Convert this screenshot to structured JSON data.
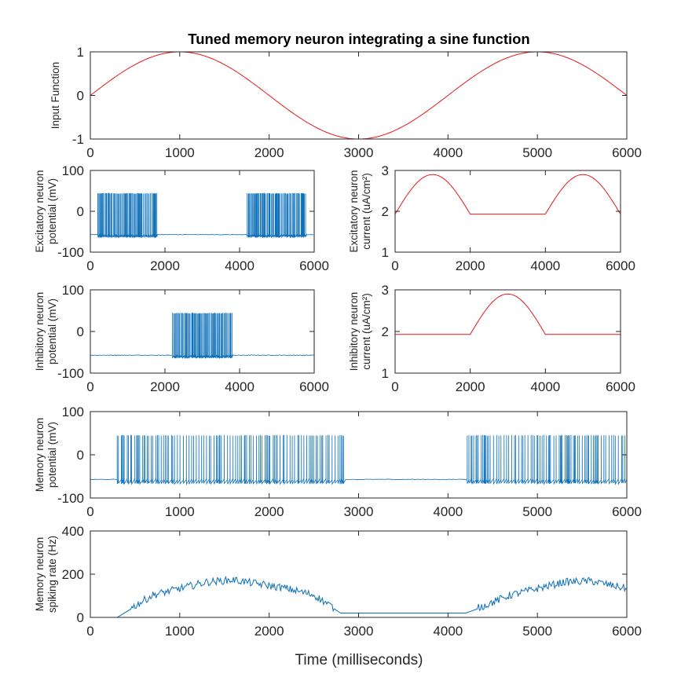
{
  "figure": {
    "title": "Tuned memory neuron integrating a sine function",
    "xlabel": "Time (milliseconds)",
    "colors": {
      "red": "#e8171a",
      "blue": "#0c6fb8",
      "axis": "#262626"
    }
  },
  "chart_data": [
    {
      "id": "input",
      "type": "line",
      "ylabel": [
        "Input Function"
      ],
      "xlim": [
        0,
        6000
      ],
      "ylim": [
        -1,
        1
      ],
      "xticks": [
        0,
        1000,
        2000,
        3000,
        4000,
        5000,
        6000
      ],
      "yticks": [
        -1,
        0,
        1
      ],
      "grid": false,
      "series": [
        {
          "color": "red",
          "function": "sin(2*pi*t/4000)"
        }
      ]
    },
    {
      "id": "exc-potential",
      "type": "line",
      "ylabel": [
        "Excitatory neuron",
        "potential (mV)"
      ],
      "xlim": [
        0,
        6000
      ],
      "ylim": [
        -100,
        100
      ],
      "xticks": [
        0,
        2000,
        4000,
        6000
      ],
      "yticks": [
        -100,
        0,
        100
      ],
      "grid": false,
      "baseline_mv": -57,
      "spike_peak_mv": 45,
      "spike_trough_mv": -65,
      "spiking_windows": [
        [
          200,
          1800
        ],
        [
          4200,
          5800
        ]
      ],
      "series": [
        {
          "color": "blue"
        }
      ]
    },
    {
      "id": "exc-current",
      "type": "line",
      "ylabel": [
        "Excitatory neuron",
        "current (uA/cm²)"
      ],
      "xlim": [
        0,
        6000
      ],
      "ylim": [
        1,
        3
      ],
      "xticks": [
        0,
        2000,
        4000,
        6000
      ],
      "yticks": [
        1,
        2,
        3
      ],
      "grid": false,
      "points": [
        [
          0,
          1.93
        ],
        [
          1000,
          2.9
        ],
        [
          2000,
          1.93
        ],
        [
          4000,
          1.93
        ],
        [
          5000,
          2.9
        ],
        [
          6000,
          1.93
        ]
      ],
      "series": [
        {
          "color": "red"
        }
      ]
    },
    {
      "id": "inh-potential",
      "type": "line",
      "ylabel": [
        "Inhibitory neuron",
        "potential (mV)"
      ],
      "xlim": [
        0,
        6000
      ],
      "ylim": [
        -100,
        100
      ],
      "xticks": [
        0,
        2000,
        4000,
        6000
      ],
      "yticks": [
        -100,
        0,
        100
      ],
      "grid": false,
      "baseline_mv": -57,
      "spike_peak_mv": 45,
      "spike_trough_mv": -65,
      "spiking_windows": [
        [
          2200,
          3800
        ]
      ],
      "series": [
        {
          "color": "blue"
        }
      ]
    },
    {
      "id": "inh-current",
      "type": "line",
      "ylabel": [
        "Inhibitory neuron",
        "current (uA/cm²)"
      ],
      "xlim": [
        0,
        6000
      ],
      "ylim": [
        1,
        3
      ],
      "xticks": [
        0,
        2000,
        4000,
        6000
      ],
      "yticks": [
        1,
        2,
        3
      ],
      "grid": false,
      "points": [
        [
          0,
          1.93
        ],
        [
          2000,
          1.93
        ],
        [
          3000,
          2.9
        ],
        [
          4000,
          1.93
        ],
        [
          6000,
          1.93
        ]
      ],
      "series": [
        {
          "color": "red"
        }
      ]
    },
    {
      "id": "mem-potential",
      "type": "line",
      "ylabel": [
        "Memory neuron",
        "potential (mV)"
      ],
      "xlim": [
        0,
        6000
      ],
      "ylim": [
        -100,
        100
      ],
      "xticks": [
        0,
        1000,
        2000,
        3000,
        4000,
        5000,
        6000
      ],
      "yticks": [
        -100,
        0,
        100
      ],
      "grid": false,
      "baseline_mv": -57,
      "spike_peak_mv": 46,
      "spike_trough_mv": -68,
      "spiking_windows": [
        [
          300,
          2850
        ],
        [
          4200,
          6000
        ]
      ],
      "series": [
        {
          "color": "blue"
        }
      ]
    },
    {
      "id": "mem-rate",
      "type": "line",
      "ylabel": [
        "Memory neuron",
        "spiking rate (Hz)"
      ],
      "xlim": [
        0,
        6000
      ],
      "ylim": [
        0,
        400
      ],
      "xticks": [
        0,
        1000,
        2000,
        3000,
        4000,
        5000,
        6000
      ],
      "yticks": [
        0,
        200,
        400
      ],
      "grid": false,
      "points": [
        [
          0,
          0
        ],
        [
          300,
          0
        ],
        [
          500,
          50
        ],
        [
          700,
          100
        ],
        [
          1000,
          130
        ],
        [
          1300,
          160
        ],
        [
          1600,
          170
        ],
        [
          1900,
          150
        ],
        [
          2200,
          130
        ],
        [
          2500,
          100
        ],
        [
          2800,
          20
        ],
        [
          3500,
          20
        ],
        [
          4200,
          20
        ],
        [
          4400,
          50
        ],
        [
          4700,
          100
        ],
        [
          5000,
          130
        ],
        [
          5300,
          160
        ],
        [
          5600,
          165
        ],
        [
          6000,
          130
        ]
      ],
      "series": [
        {
          "color": "blue"
        }
      ]
    }
  ]
}
